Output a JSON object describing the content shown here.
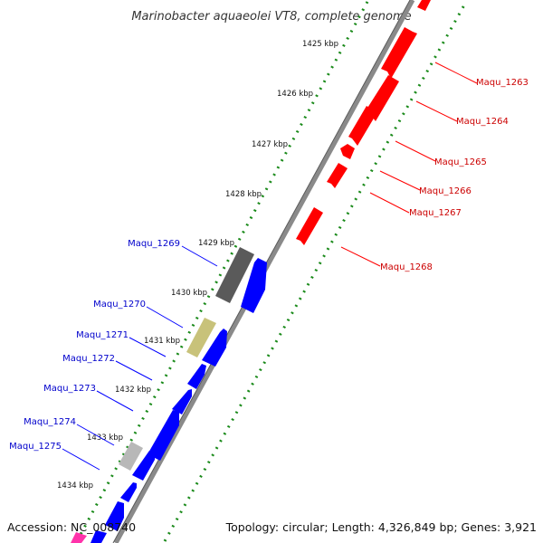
{
  "title": "Marinobacter aquaeolei VT8, complete genome",
  "accession": "Accession: NC_008740",
  "topology": "Topology: circular; Length: 4,326,849 bp; Genes: 3,921",
  "colors": {
    "forward": "#ff0000",
    "reverse": "#0000ff",
    "backbone": "#7a7a7a",
    "ticks": "#1a8a1a",
    "dark_gray_gene": "#5a5a5a",
    "khaki_gene": "#c8c27a",
    "light_gray_gene": "#b8b8b8",
    "magenta_gene": "#ff33aa"
  },
  "kbp_labels": [
    "1425 kbp",
    "1426 kbp",
    "1427 kbp",
    "1428 kbp",
    "1429 kbp",
    "1430 kbp",
    "1431 kbp",
    "1432 kbp",
    "1433 kbp",
    "1434 kbp"
  ],
  "forward_gene_labels": [
    "Maqu_1263",
    "Maqu_1264",
    "Maqu_1265",
    "Maqu_1266",
    "Maqu_1267",
    "Maqu_1268"
  ],
  "reverse_gene_labels": [
    "Maqu_1269",
    "Maqu_1270",
    "Maqu_1271",
    "Maqu_1272",
    "Maqu_1273",
    "Maqu_1274",
    "Maqu_1275"
  ]
}
